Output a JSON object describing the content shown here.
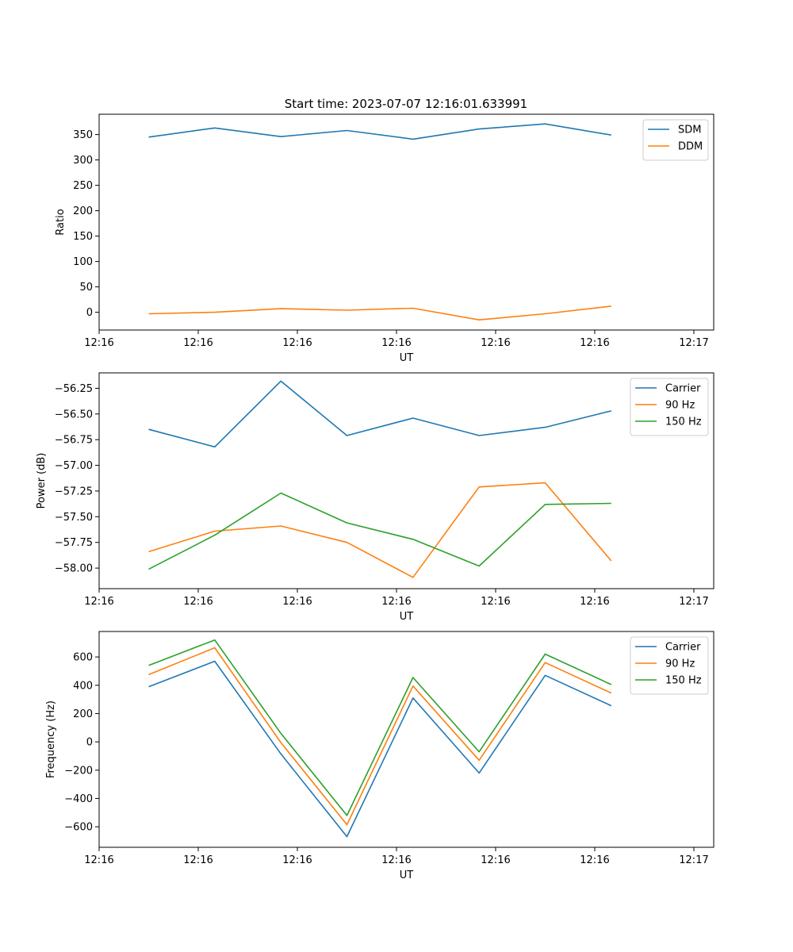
{
  "figure_title": "Start time: 2023-07-07 12:16:01.633991",
  "chart_data": [
    {
      "type": "line",
      "title": "Start time: 2023-07-07 12:16:01.633991",
      "xlabel": "UT",
      "ylabel": "Ratio",
      "xlim": [
        -0.75,
        8.55
      ],
      "ylim": [
        -35,
        390
      ],
      "x": [
        0,
        1,
        2,
        3,
        4,
        5,
        6,
        7
      ],
      "x_ticks": [
        -0.75,
        0.75,
        2.25,
        3.75,
        5.25,
        6.75,
        8.25
      ],
      "x_tick_labels": [
        "12:16",
        "12:16",
        "12:16",
        "12:16",
        "12:16",
        "12:16",
        "12:17"
      ],
      "y_ticks": [
        0,
        50,
        100,
        150,
        200,
        250,
        300,
        350
      ],
      "y_tick_labels": [
        "0",
        "50",
        "100",
        "150",
        "200",
        "250",
        "300",
        "350"
      ],
      "legend_position": "top-right",
      "series": [
        {
          "name": "SDM",
          "color": "#1f77b4",
          "values": [
            345,
            363,
            346,
            358,
            341,
            361,
            371,
            349
          ]
        },
        {
          "name": "DDM",
          "color": "#ff7f0e",
          "values": [
            -3,
            0,
            7,
            4,
            8,
            -15,
            -3,
            12
          ]
        }
      ]
    },
    {
      "type": "line",
      "title": "",
      "xlabel": "UT",
      "ylabel": "Power (dB)",
      "xlim": [
        -0.75,
        8.55
      ],
      "ylim": [
        -58.2,
        -56.1
      ],
      "x": [
        0,
        1,
        2,
        3,
        4,
        5,
        6,
        7
      ],
      "x_ticks": [
        -0.75,
        0.75,
        2.25,
        3.75,
        5.25,
        6.75,
        8.25
      ],
      "x_tick_labels": [
        "12:16",
        "12:16",
        "12:16",
        "12:16",
        "12:16",
        "12:16",
        "12:17"
      ],
      "y_ticks": [
        -58.0,
        -57.75,
        -57.5,
        -57.25,
        -57.0,
        -56.75,
        -56.5,
        -56.25
      ],
      "y_tick_labels": [
        "−58.00",
        "−57.75",
        "−57.50",
        "−57.25",
        "−57.00",
        "−56.75",
        "−56.50",
        "−56.25"
      ],
      "legend_position": "top-right",
      "series": [
        {
          "name": "Carrier",
          "color": "#1f77b4",
          "values": [
            -56.65,
            -56.82,
            -56.18,
            -56.71,
            -56.54,
            -56.71,
            -56.63,
            -56.47
          ]
        },
        {
          "name": "90 Hz",
          "color": "#ff7f0e",
          "values": [
            -57.84,
            -57.64,
            -57.59,
            -57.75,
            -58.09,
            -57.21,
            -57.17,
            -57.93
          ]
        },
        {
          "name": "150 Hz",
          "color": "#2ca02c",
          "values": [
            -58.01,
            -57.68,
            -57.27,
            -57.56,
            -57.72,
            -57.98,
            -57.38,
            -57.37
          ]
        }
      ]
    },
    {
      "type": "line",
      "title": "",
      "xlabel": "UT",
      "ylabel": "Frequency (Hz)",
      "xlim": [
        -0.75,
        8.55
      ],
      "ylim": [
        -745,
        780
      ],
      "x": [
        0,
        1,
        2,
        3,
        4,
        5,
        6,
        7
      ],
      "x_ticks": [
        -0.75,
        0.75,
        2.25,
        3.75,
        5.25,
        6.75,
        8.25
      ],
      "x_tick_labels": [
        "12:16",
        "12:16",
        "12:16",
        "12:16",
        "12:16",
        "12:16",
        "12:17"
      ],
      "y_ticks": [
        -600,
        -400,
        -200,
        0,
        200,
        400,
        600
      ],
      "y_tick_labels": [
        "−600",
        "−400",
        "−200",
        "0",
        "200",
        "400",
        "600"
      ],
      "legend_position": "top-right",
      "series": [
        {
          "name": "Carrier",
          "color": "#1f77b4",
          "values": [
            390,
            570,
            -85,
            -670,
            310,
            -220,
            470,
            255
          ]
        },
        {
          "name": "90 Hz",
          "color": "#ff7f0e",
          "values": [
            475,
            665,
            -5,
            -585,
            395,
            -130,
            560,
            345
          ]
        },
        {
          "name": "150 Hz",
          "color": "#2ca02c",
          "values": [
            540,
            720,
            60,
            -520,
            455,
            -70,
            620,
            405
          ]
        }
      ]
    }
  ]
}
